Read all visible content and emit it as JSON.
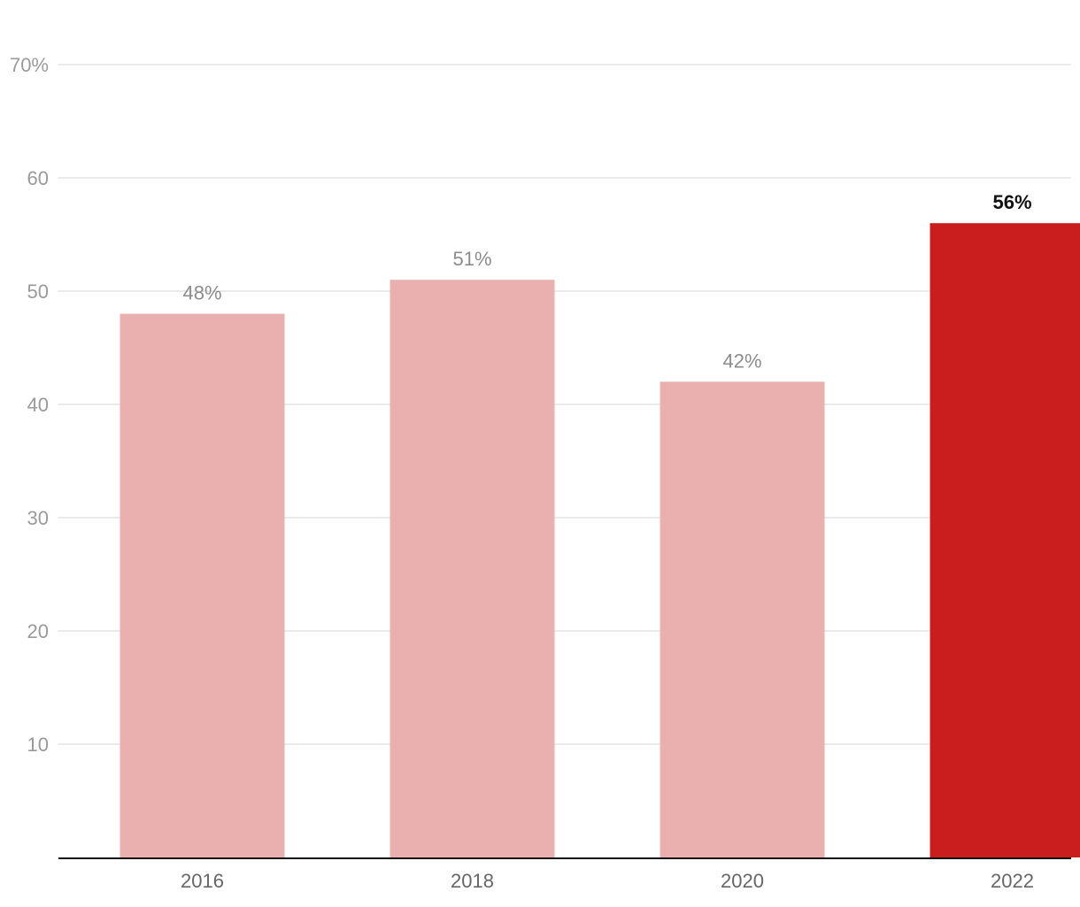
{
  "chart_data": {
    "type": "bar",
    "title": "",
    "xlabel": "",
    "ylabel": "",
    "categories": [
      "2016",
      "2018",
      "2020",
      "2022"
    ],
    "values": [
      48,
      51,
      42,
      56
    ],
    "data_labels": [
      "48%",
      "51%",
      "42%",
      "56%"
    ],
    "highlight_index": 3,
    "ylim": [
      0,
      70
    ],
    "yticks": [
      10,
      20,
      30,
      40,
      50,
      60,
      70
    ],
    "ytick_labels": [
      "10",
      "20",
      "30",
      "40",
      "50",
      "60",
      "70%"
    ],
    "grid": true,
    "legend": "none",
    "colors": {
      "bar": "#eab0b0",
      "highlight": "#c81e1e",
      "grid": "#e3e3e3",
      "axis": "#111111"
    }
  }
}
